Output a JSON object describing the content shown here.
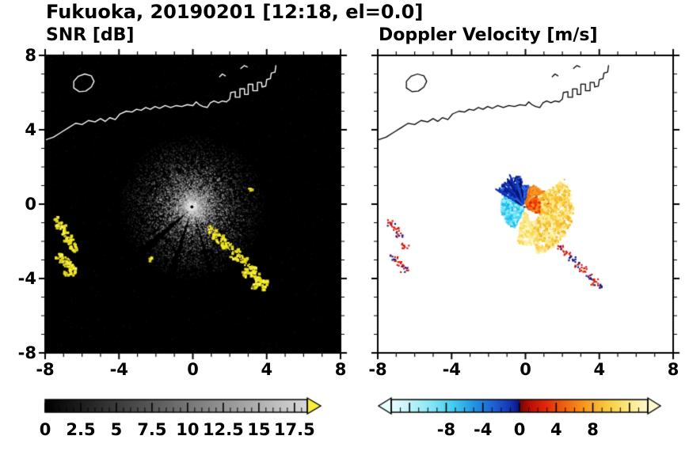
{
  "figure": {
    "title": "Fukuoka, 20190201 [12:18, el=0.0]",
    "station": "Fukuoka",
    "date": "20190201",
    "time": "12:18",
    "elevation": "0.0"
  },
  "chart_data": {
    "type": "heatmap",
    "subtype": "dual-panel radar PPI",
    "grid": false,
    "legend": "none",
    "panels": [
      {
        "id": "snr",
        "title": "SNR [dB]",
        "xlim": [
          -8,
          8
        ],
        "ylim": [
          -8,
          8
        ],
        "xtick_values": [
          -8,
          -4,
          0,
          4,
          8
        ],
        "xtick_labels": [
          "-8",
          "-4",
          "0",
          "4",
          "8"
        ],
        "ytick_values": [
          8,
          4,
          0,
          -4,
          -8
        ],
        "ytick_labels": [
          "8",
          "4",
          "0",
          "-4",
          "-8"
        ],
        "minor_tick_step": 1,
        "background_color": "#000000",
        "coast_color": "#ffffff",
        "radar_center": [
          -0.05,
          -0.15
        ],
        "speckle": {
          "point_count": 12000,
          "ray_count": 110,
          "max_radius": 3.9
        },
        "strong_echo_colors": [
          "#f6ec25",
          "#efe31f",
          "#fbf556",
          "#d8ce1c"
        ],
        "strong_echoes": [
          [
            -7.35,
            -0.85,
            0.22
          ],
          [
            -7.2,
            -1.1,
            0.26
          ],
          [
            -7.05,
            -1.35,
            0.26
          ],
          [
            -6.9,
            -1.6,
            0.24
          ],
          [
            -6.85,
            -1.85,
            0.2
          ],
          [
            -6.6,
            -2.1,
            0.26
          ],
          [
            -6.45,
            -2.35,
            0.22
          ],
          [
            -7.3,
            -2.75,
            0.2
          ],
          [
            -7.1,
            -2.95,
            0.26
          ],
          [
            -6.85,
            -3.1,
            0.26
          ],
          [
            -6.65,
            -3.3,
            0.24
          ],
          [
            -6.55,
            -3.55,
            0.2
          ],
          [
            -6.85,
            -3.65,
            0.18
          ],
          [
            0.9,
            -1.3,
            0.18
          ],
          [
            1.15,
            -1.55,
            0.22
          ],
          [
            1.4,
            -1.8,
            0.24
          ],
          [
            1.65,
            -2.05,
            0.26
          ],
          [
            1.95,
            -2.3,
            0.3
          ],
          [
            2.25,
            -2.6,
            0.3
          ],
          [
            2.55,
            -2.9,
            0.28
          ],
          [
            2.85,
            -3.2,
            0.3
          ],
          [
            3.1,
            -3.5,
            0.28
          ],
          [
            3.35,
            -3.8,
            0.3
          ],
          [
            3.6,
            -4.1,
            0.28
          ],
          [
            3.85,
            -4.3,
            0.26
          ],
          [
            3.35,
            -4.35,
            0.22
          ],
          [
            2.7,
            -3.75,
            0.16
          ],
          [
            3.05,
            0.85,
            0.1
          ],
          [
            -2.35,
            -2.9,
            0.09
          ]
        ],
        "colorbar": {
          "range": [
            0,
            18.4
          ],
          "tick_values": [
            0,
            2.5,
            5,
            7.5,
            10,
            12.5,
            15,
            17.5
          ],
          "tick_labels": [
            "0",
            "2.5",
            "5",
            "7.5",
            "10",
            "12.5",
            "15",
            "17.5"
          ],
          "minor_step": 0.5,
          "major_step": 2.5,
          "colormap": "grayscale",
          "colors": [
            "#000000",
            "#d8d8d8"
          ],
          "over_arrow_color": "#f8ef3a"
        }
      },
      {
        "id": "velocity",
        "title": "Doppler Velocity [m/s]",
        "xlim": [
          -8,
          8
        ],
        "ylim": [
          -8,
          8
        ],
        "xtick_values": [
          -8,
          -4,
          0,
          4,
          8
        ],
        "xtick_labels": [
          "-8",
          "-4",
          "0",
          "4",
          "8"
        ],
        "ytick_values": [
          8,
          4,
          0,
          -4,
          -8
        ],
        "ytick_labels": [
          "8",
          "4",
          "0",
          "-4",
          "-8"
        ],
        "minor_tick_step": 1,
        "background_color": "#ffffff",
        "coast_color": "#000000",
        "radar_center": [
          -0.05,
          -0.15
        ],
        "fans": [
          {
            "name": "cyan-left",
            "a0": 150,
            "a1": 245,
            "r0": 0.15,
            "r1": 1.25,
            "count": 650,
            "size": 2.6,
            "colors": [
              "#4ed9f2",
              "#79e5f7",
              "#1cb9eb",
              "#aceef9",
              "#27c4ee"
            ]
          },
          {
            "name": "navy-upper-left",
            "a0": 96,
            "a1": 150,
            "r0": 0.2,
            "r1": 1.7,
            "count": 300,
            "size": 2.4,
            "streaks": 18,
            "colors": [
              "#0c2fb5",
              "#1a4cd6",
              "#0a1d90",
              "#2a63e6",
              "#061257"
            ]
          },
          {
            "name": "blue-top",
            "a0": 75,
            "a1": 96,
            "r0": 0.2,
            "r1": 1.15,
            "count": 90,
            "size": 2.2,
            "colors": [
              "#1a4cd6",
              "#2a63e6",
              "#0c2fb5"
            ]
          },
          {
            "name": "orange-top-right",
            "a0": 40,
            "a1": 75,
            "r0": 0.2,
            "r1": 1.25,
            "count": 160,
            "size": 2.4,
            "streaks": 6,
            "colors": [
              "#f2871c",
              "#ef6a10",
              "#f5a02a"
            ]
          },
          {
            "name": "red-right",
            "a0": -25,
            "a1": 40,
            "r0": 0.15,
            "r1": 1.45,
            "count": 480,
            "size": 2.6,
            "colors": [
              "#ee3a0e",
              "#f06a12",
              "#e22607",
              "#f78f1d"
            ]
          },
          {
            "name": "yellow-outer-southeast",
            "a0": -75,
            "a1": 35,
            "r0": 0.9,
            "r1": 2.65,
            "count": 900,
            "size": 2.8,
            "colors": [
              "#f8d84e",
              "#fbe98a",
              "#f6c433",
              "#fdf2b8",
              "#f3b62b"
            ]
          },
          {
            "name": "pale-tail-south",
            "a0": -102,
            "a1": -70,
            "r0": 0.3,
            "r1": 2.1,
            "count": 230,
            "size": 2.6,
            "colors": [
              "#fbe98a",
              "#fdf2b8",
              "#f8d84e"
            ]
          }
        ],
        "distant_echoes": [
          {
            "x": -7.3,
            "y": -0.95,
            "colors": [
              "#cf1d0e",
              "#cf1d0e",
              "#151a86"
            ]
          },
          {
            "x": -7.1,
            "y": -1.3,
            "colors": [
              "#cf1d0e"
            ]
          },
          {
            "x": -6.9,
            "y": -1.65,
            "colors": [
              "#cf1d0e",
              "#151a86"
            ]
          },
          {
            "x": -6.55,
            "y": -2.2,
            "colors": [
              "#cf1d0e"
            ]
          },
          {
            "x": -7.15,
            "y": -2.85,
            "colors": [
              "#cf1d0e",
              "#151a86"
            ]
          },
          {
            "x": -6.85,
            "y": -3.15,
            "colors": [
              "#cf1d0e"
            ]
          },
          {
            "x": -6.6,
            "y": -3.45,
            "colors": [
              "#cf1d0e",
              "#151a86"
            ]
          },
          {
            "x": 1.9,
            "y": -2.3,
            "colors": [
              "#151a86",
              "#cf1d0e"
            ]
          },
          {
            "x": 2.2,
            "y": -2.6,
            "colors": [
              "#cf1d0e"
            ]
          },
          {
            "x": 2.5,
            "y": -2.9,
            "colors": [
              "#151a86"
            ]
          },
          {
            "x": 2.8,
            "y": -3.2,
            "colors": [
              "#cf1d0e",
              "#151a86"
            ]
          },
          {
            "x": 3.1,
            "y": -3.5,
            "colors": [
              "#cf1d0e"
            ]
          },
          {
            "x": 3.4,
            "y": -3.85,
            "colors": [
              "#151a86",
              "#cf1d0e"
            ]
          },
          {
            "x": 3.7,
            "y": -4.15,
            "colors": [
              "#cf1d0e"
            ]
          },
          {
            "x": 3.9,
            "y": -4.35,
            "colors": [
              "#cf1d0e",
              "#151a86"
            ]
          }
        ],
        "colorbar": {
          "range": [
            -14,
            14
          ],
          "tick_values": [
            -8,
            -4,
            0,
            4,
            8
          ],
          "tick_labels": [
            "-8",
            "-4",
            "0",
            "4",
            "8"
          ],
          "minor_step": 1,
          "major_step": 4,
          "colormap": "blue-to-red diverging",
          "gradient": [
            [
              0.0,
              "#eafcfd"
            ],
            [
              0.07,
              "#c2f3f9"
            ],
            [
              0.15,
              "#8ae7f5"
            ],
            [
              0.24,
              "#45cdee"
            ],
            [
              0.32,
              "#2496e2"
            ],
            [
              0.4,
              "#1f60d2"
            ],
            [
              0.46,
              "#1638b4"
            ],
            [
              0.497,
              "#0a1486"
            ],
            [
              0.503,
              "#7a0403"
            ],
            [
              0.54,
              "#b80f06"
            ],
            [
              0.6,
              "#e02808"
            ],
            [
              0.68,
              "#f0660f"
            ],
            [
              0.76,
              "#f79c22"
            ],
            [
              0.84,
              "#f7c93e"
            ],
            [
              0.92,
              "#fbe87e"
            ],
            [
              1.0,
              "#fdf7cd"
            ]
          ],
          "under_arrow_color": "#eafcfd",
          "over_arrow_color": "#fdf7cd"
        }
      }
    ],
    "coastline_segments": [
      [
        [
          -8,
          3.45
        ],
        [
          -7.55,
          3.6
        ],
        [
          -7.15,
          3.85
        ],
        [
          -6.75,
          4.1
        ],
        [
          -6.35,
          4.35
        ],
        [
          -6.0,
          4.28
        ],
        [
          -5.65,
          4.5
        ],
        [
          -5.3,
          4.42
        ],
        [
          -5.0,
          4.6
        ],
        [
          -4.75,
          4.45
        ],
        [
          -4.5,
          4.65
        ],
        [
          -4.2,
          4.55
        ],
        [
          -3.95,
          4.85
        ],
        [
          -3.6,
          5.0
        ],
        [
          -3.3,
          4.95
        ],
        [
          -3.05,
          5.1
        ],
        [
          -2.8,
          5.05
        ],
        [
          -2.55,
          5.2
        ],
        [
          -2.3,
          5.1
        ],
        [
          -2.05,
          5.25
        ],
        [
          -1.8,
          5.15
        ],
        [
          -1.5,
          5.3
        ],
        [
          -1.2,
          5.2
        ],
        [
          -0.9,
          5.3
        ],
        [
          -0.6,
          5.25
        ],
        [
          -0.3,
          5.35
        ],
        [
          0.0,
          5.3
        ],
        [
          0.18,
          5.5
        ],
        [
          0.35,
          5.35
        ],
        [
          0.55,
          5.25
        ],
        [
          0.78,
          5.2
        ],
        [
          0.95,
          5.45
        ],
        [
          1.15,
          5.55
        ],
        [
          1.38,
          5.45
        ],
        [
          1.6,
          5.55
        ],
        [
          1.82,
          5.5
        ],
        [
          2.0,
          5.65
        ],
        [
          2.05,
          6.0
        ],
        [
          2.3,
          6.05
        ],
        [
          2.3,
          5.75
        ],
        [
          2.55,
          5.75
        ],
        [
          2.55,
          6.2
        ],
        [
          2.8,
          6.2
        ],
        [
          2.8,
          5.9
        ],
        [
          3.0,
          5.9
        ],
        [
          3.0,
          6.45
        ],
        [
          3.25,
          6.45
        ],
        [
          3.25,
          6.1
        ],
        [
          3.5,
          6.1
        ],
        [
          3.5,
          6.55
        ],
        [
          3.72,
          6.55
        ],
        [
          3.75,
          6.3
        ],
        [
          3.95,
          6.35
        ],
        [
          4.0,
          6.7
        ],
        [
          4.2,
          6.75
        ],
        [
          4.25,
          7.05
        ],
        [
          4.45,
          7.1
        ],
        [
          4.5,
          7.45
        ]
      ],
      [
        [
          -6.45,
          6.25
        ],
        [
          -6.15,
          6.05
        ],
        [
          -5.8,
          6.08
        ],
        [
          -5.5,
          6.3
        ],
        [
          -5.35,
          6.6
        ],
        [
          -5.5,
          6.9
        ],
        [
          -5.85,
          7.0
        ],
        [
          -6.2,
          6.88
        ],
        [
          -6.45,
          6.6
        ],
        [
          -6.45,
          6.25
        ]
      ],
      [
        [
          2.6,
          7.3
        ],
        [
          2.78,
          7.45
        ],
        [
          2.95,
          7.38
        ]
      ],
      [
        [
          1.45,
          6.85
        ],
        [
          1.6,
          7.0
        ],
        [
          1.76,
          6.9
        ]
      ]
    ]
  }
}
